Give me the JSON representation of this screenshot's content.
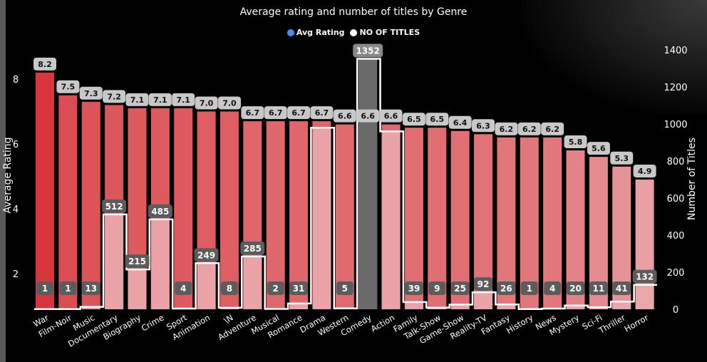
{
  "chart_data": {
    "type": "bar",
    "title": "Average rating and number of titles by Genre",
    "legend": [
      {
        "name": "Avg Rating",
        "color": "#4a8cf7"
      },
      {
        "name": "NO OF TITLES",
        "color": "#ffffff"
      }
    ],
    "legend_position": "top-center",
    "ylabel_left": "Average Rating",
    "ylabel_right": "Number of Titles",
    "y_left_ticks": [
      "2",
      "4",
      "6",
      "8"
    ],
    "y_right_ticks": [
      "0",
      "200",
      "400",
      "600",
      "800",
      "1000",
      "1200",
      "1400"
    ],
    "ylim_left": [
      0.9,
      8.9
    ],
    "ylim_right": [
      0,
      1400
    ],
    "grid": false,
    "categories": [
      "War",
      "Film-Noir",
      "Music",
      "Documentary",
      "Biography",
      "Crime",
      "Sport",
      "Animation",
      "\\N",
      "Adventure",
      "Musical",
      "Romance",
      "Drama",
      "Western",
      "Comedy",
      "Action",
      "Family",
      "Talk-Show",
      "Game-Show",
      "Reality-TV",
      "Fantasy",
      "History",
      "News",
      "Mystery",
      "Sci-Fi",
      "Thriller",
      "Horror"
    ],
    "series": [
      {
        "name": "Avg Rating",
        "axis": "left",
        "labels": [
          "8.2",
          "7.5",
          "7.3",
          "7.2",
          "7.1",
          "7.1",
          "7.1",
          "7.0",
          "7.0",
          "6.7",
          "6.7",
          "6.7",
          "6.7",
          "6.6",
          "6.6",
          "6.6",
          "6.5",
          "6.5",
          "6.4",
          "6.3",
          "6.2",
          "6.2",
          "6.2",
          "5.8",
          "5.6",
          "5.3",
          "4.9"
        ],
        "values": [
          8.2,
          7.5,
          7.3,
          7.2,
          7.1,
          7.1,
          7.1,
          7.0,
          7.0,
          6.7,
          6.7,
          6.7,
          6.7,
          6.6,
          6.6,
          6.6,
          6.5,
          6.5,
          6.4,
          6.3,
          6.2,
          6.2,
          6.2,
          5.8,
          5.6,
          5.3,
          4.9
        ]
      },
      {
        "name": "NO OF TITLES",
        "axis": "right",
        "labels": [
          "1",
          "1",
          "13",
          "512",
          "215",
          "485",
          "4",
          "249",
          "8",
          "285",
          "2",
          "31",
          "",
          "5",
          "1352",
          "",
          "39",
          "9",
          "25",
          "92",
          "26",
          "1",
          "4",
          "20",
          "11",
          "41",
          "132"
        ],
        "values": [
          1,
          1,
          13,
          512,
          215,
          485,
          4,
          249,
          8,
          285,
          2,
          31,
          980,
          5,
          1352,
          960,
          39,
          9,
          25,
          92,
          26,
          1,
          4,
          20,
          11,
          41,
          132
        ]
      }
    ]
  }
}
